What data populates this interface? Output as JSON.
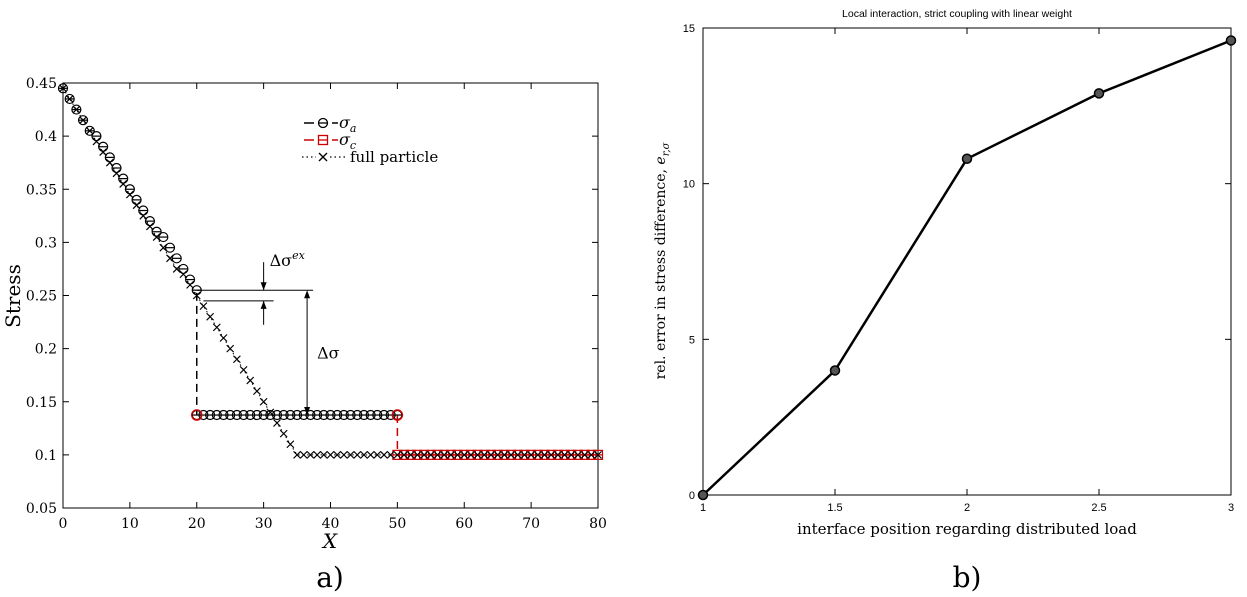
{
  "chart_data": [
    {
      "type": "scatter",
      "panel_label": "a)",
      "xlabel": "X",
      "ylabel": "Stress",
      "xlim": [
        0,
        80
      ],
      "ylim": [
        0.05,
        0.45
      ],
      "x_ticks": [
        0,
        10,
        20,
        30,
        40,
        50,
        60,
        70,
        80
      ],
      "x_tick_labels": [
        "0",
        "10",
        "20",
        "30",
        "40",
        "50",
        "60",
        "70",
        "80"
      ],
      "y_ticks": [
        0.05,
        0.1,
        0.15,
        0.2,
        0.25,
        0.3,
        0.35,
        0.4,
        0.45
      ],
      "y_tick_labels": [
        "0.05",
        "0.1",
        "0.15",
        "0.2",
        "0.25",
        "0.3",
        "0.35",
        "0.4",
        "0.45"
      ],
      "legend_position": "top-right",
      "series": [
        {
          "name_base": "σ",
          "name_sub": "a",
          "marker": "circle-bar",
          "line": "dashed",
          "color": "#000000",
          "segments": [
            {
              "x_start": 0,
              "x_end": 20,
              "y_start": 0.445,
              "y_end": 0.255
            },
            {
              "x_start": 20,
              "x_end": 50,
              "y_start": 0.1375,
              "y_end": 0.1375
            }
          ]
        },
        {
          "name_base": "σ",
          "name_sub": "c",
          "marker": "square-bar",
          "line": "dashed",
          "color": "#cc0000",
          "points": [
            [
              20,
              0.1375
            ],
            [
              50,
              0.1375
            ],
            [
              50,
              0.1
            ],
            [
              80,
              0.1
            ]
          ]
        },
        {
          "name": "full particle",
          "marker": "x",
          "line": "dotted",
          "color": "#000000",
          "segments": [
            {
              "x_start": 0,
              "x_end": 35,
              "y_start": 0.445,
              "y_end": 0.1
            },
            {
              "x_start": 35,
              "x_end": 80,
              "y_start": 0.1,
              "y_end": 0.1
            }
          ]
        }
      ],
      "vertical_links": [
        {
          "x": 20,
          "y_from": 0.2525,
          "y_to": 0.1375,
          "color": "#000000"
        },
        {
          "x": 50,
          "y_from": 0.1375,
          "y_to": 0.1,
          "color": "#cc0000"
        }
      ],
      "annotations": [
        {
          "label_base": "Δσ",
          "label_sup": "ex",
          "x": 30,
          "y_top": 0.255,
          "y_bottom": 0.245
        },
        {
          "label": "Δσ",
          "x": 36.5,
          "y_top": 0.255,
          "y_bottom": 0.1375
        }
      ]
    },
    {
      "type": "line",
      "panel_label": "b)",
      "title": "Local interaction, strict coupling with linear weight",
      "xlabel": "interface position regarding distributed load",
      "ylabel_base": "rel. error in stress difference, ",
      "ylabel_var": "e",
      "ylabel_sub": "r,σ",
      "xlim": [
        1,
        3
      ],
      "ylim": [
        0,
        15
      ],
      "x_ticks": [
        1,
        1.5,
        2,
        2.5,
        3
      ],
      "x_tick_labels": [
        "1",
        "1.5",
        "2",
        "2.5",
        "3"
      ],
      "y_ticks": [
        0,
        5,
        10,
        15
      ],
      "y_tick_labels": [
        "0",
        "5",
        "10",
        "15"
      ],
      "x": [
        1,
        1.5,
        2,
        2.5,
        3
      ],
      "y": [
        0,
        4.0,
        10.8,
        12.9,
        14.6
      ],
      "color": "#000000",
      "marker": "circle"
    }
  ]
}
